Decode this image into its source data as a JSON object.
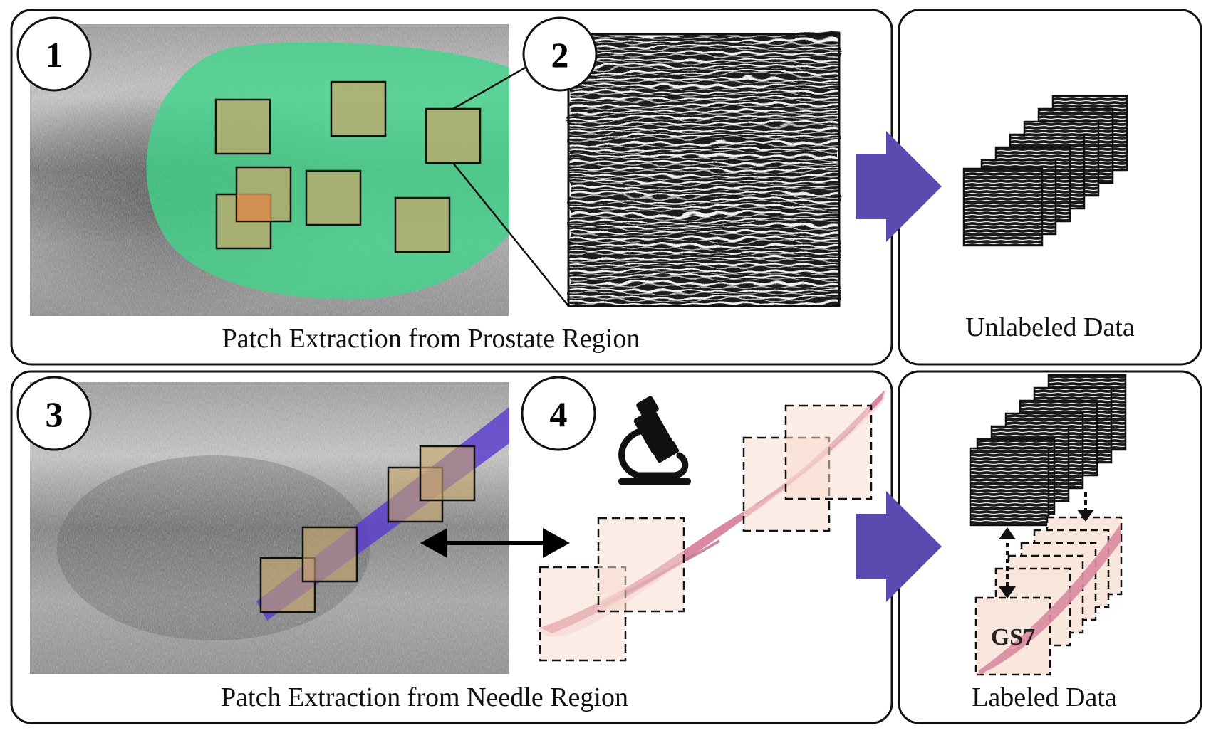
{
  "panels": {
    "top_left": {
      "step_a": "1",
      "step_b": "2",
      "caption": "Patch Extraction from Prostate Region"
    },
    "top_right": {
      "caption": "Unlabeled Data"
    },
    "bottom_left": {
      "step_a": "3",
      "step_b": "4",
      "caption": "Patch Extraction from Needle Region"
    },
    "bottom_right": {
      "caption": "Labeled Data",
      "grade_label": "GS7"
    }
  },
  "icons": {
    "microscope": "microscope-icon",
    "flow_arrow": "flow-arrow-icon",
    "correspondence_arrow": "double-arrow-icon"
  },
  "colors": {
    "prostate_mask": "#3fd68a",
    "needle_track": "#5a3cd0",
    "patch_fill": "#c9a86a",
    "flow_arrow": "#5b4bb0",
    "tissue": "#d98aa0",
    "patch_background": "#f7ddd0"
  }
}
